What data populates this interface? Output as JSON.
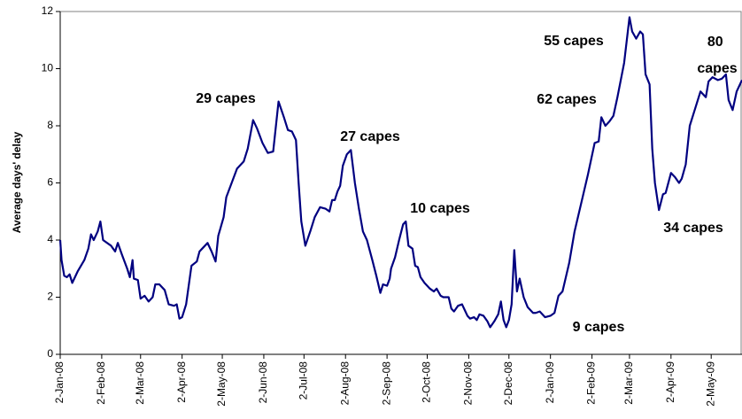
{
  "chart_data": {
    "type": "line",
    "y_label": "Average days' delay",
    "x": [
      "2008-01-02",
      "2008-01-03",
      "2008-01-05",
      "2008-01-07",
      "2008-01-09",
      "2008-01-11",
      "2008-01-15",
      "2008-01-20",
      "2008-01-23",
      "2008-01-25",
      "2008-01-27",
      "2008-01-30",
      "2008-02-01",
      "2008-02-03",
      "2008-02-09",
      "2008-02-12",
      "2008-02-14",
      "2008-02-17",
      "2008-02-21",
      "2008-02-23",
      "2008-02-25",
      "2008-02-26",
      "2008-02-29",
      "2008-03-02",
      "2008-03-05",
      "2008-03-08",
      "2008-03-11",
      "2008-03-13",
      "2008-03-16",
      "2008-03-20",
      "2008-03-23",
      "2008-03-27",
      "2008-03-29",
      "2008-03-31",
      "2008-04-02",
      "2008-04-05",
      "2008-04-09",
      "2008-04-13",
      "2008-04-15",
      "2008-04-18",
      "2008-04-21",
      "2008-04-24",
      "2008-04-27",
      "2008-04-29",
      "2008-05-03",
      "2008-05-05",
      "2008-05-09",
      "2008-05-13",
      "2008-05-18",
      "2008-05-21",
      "2008-05-25",
      "2008-05-28",
      "2008-06-01",
      "2008-06-05",
      "2008-06-09",
      "2008-06-13",
      "2008-06-17",
      "2008-06-20",
      "2008-06-23",
      "2008-06-26",
      "2008-06-28",
      "2008-06-30",
      "2008-07-03",
      "2008-07-07",
      "2008-07-10",
      "2008-07-14",
      "2008-07-18",
      "2008-07-21",
      "2008-07-23",
      "2008-07-25",
      "2008-07-27",
      "2008-07-29",
      "2008-07-31",
      "2008-08-03",
      "2008-08-06",
      "2008-08-09",
      "2008-08-12",
      "2008-08-15",
      "2008-08-18",
      "2008-08-22",
      "2008-08-25",
      "2008-08-28",
      "2008-08-30",
      "2008-09-02",
      "2008-09-04",
      "2008-09-05",
      "2008-09-08",
      "2008-09-11",
      "2008-09-14",
      "2008-09-16",
      "2008-09-18",
      "2008-09-21",
      "2008-09-23",
      "2008-09-25",
      "2008-09-27",
      "2008-09-30",
      "2008-10-04",
      "2008-10-07",
      "2008-10-09",
      "2008-10-12",
      "2008-10-14",
      "2008-10-18",
      "2008-10-20",
      "2008-10-22",
      "2008-10-25",
      "2008-10-28",
      "2008-10-30",
      "2008-11-01",
      "2008-11-03",
      "2008-11-06",
      "2008-11-08",
      "2008-11-10",
      "2008-11-13",
      "2008-11-16",
      "2008-11-18",
      "2008-11-21",
      "2008-11-24",
      "2008-11-26",
      "2008-11-28",
      "2008-11-30",
      "2008-12-02",
      "2008-12-04",
      "2008-12-06",
      "2008-12-08",
      "2008-12-10",
      "2008-12-13",
      "2008-12-16",
      "2008-12-20",
      "2008-12-22",
      "2008-12-25",
      "2008-12-29",
      "2009-01-02",
      "2009-01-05",
      "2009-01-08",
      "2009-01-11",
      "2009-01-16",
      "2009-01-20",
      "2009-01-25",
      "2009-01-30",
      "2009-02-04",
      "2009-02-07",
      "2009-02-09",
      "2009-02-12",
      "2009-02-15",
      "2009-02-18",
      "2009-02-21",
      "2009-02-26",
      "2009-02-28",
      "2009-03-02",
      "2009-03-04",
      "2009-03-07",
      "2009-03-10",
      "2009-03-12",
      "2009-03-14",
      "2009-03-17",
      "2009-03-19",
      "2009-03-21",
      "2009-03-24",
      "2009-03-27",
      "2009-03-29",
      "2009-04-02",
      "2009-04-05",
      "2009-04-08",
      "2009-04-10",
      "2009-04-13",
      "2009-04-16",
      "2009-04-20",
      "2009-04-24",
      "2009-04-28",
      "2009-04-30",
      "2009-05-03",
      "2009-05-07",
      "2009-05-10",
      "2009-05-13",
      "2009-05-15",
      "2009-05-18",
      "2009-05-21",
      "2009-05-25"
    ],
    "series": [
      {
        "color": "#000080",
        "values": [
          4.0,
          3.3,
          2.75,
          2.7,
          2.8,
          2.5,
          2.9,
          3.3,
          3.7,
          4.2,
          4.0,
          4.3,
          4.65,
          4.0,
          3.8,
          3.6,
          3.9,
          3.5,
          3.0,
          2.7,
          3.3,
          2.65,
          2.6,
          1.95,
          2.05,
          1.85,
          2.0,
          2.45,
          2.45,
          2.25,
          1.75,
          1.7,
          1.75,
          1.25,
          1.3,
          1.75,
          3.1,
          3.25,
          3.6,
          3.75,
          3.9,
          3.6,
          3.25,
          4.15,
          4.8,
          5.5,
          6.0,
          6.5,
          6.75,
          7.2,
          8.2,
          7.9,
          7.4,
          7.05,
          7.1,
          8.85,
          8.3,
          7.85,
          7.8,
          7.5,
          6.0,
          4.65,
          3.8,
          4.35,
          4.8,
          5.15,
          5.1,
          5.0,
          5.4,
          5.4,
          5.7,
          5.9,
          6.6,
          7.0,
          7.15,
          6.0,
          5.1,
          4.3,
          4.0,
          3.3,
          2.75,
          2.15,
          2.45,
          2.4,
          2.65,
          3.0,
          3.4,
          4.0,
          4.55,
          4.65,
          3.8,
          3.7,
          3.1,
          3.05,
          2.7,
          2.5,
          2.3,
          2.2,
          2.3,
          2.05,
          2.0,
          2.0,
          1.6,
          1.5,
          1.7,
          1.75,
          1.55,
          1.35,
          1.25,
          1.3,
          1.2,
          1.4,
          1.35,
          1.15,
          0.95,
          1.15,
          1.4,
          1.85,
          1.2,
          0.95,
          1.2,
          1.75,
          3.65,
          2.2,
          2.65,
          2.0,
          1.65,
          1.45,
          1.45,
          1.5,
          1.3,
          1.35,
          1.45,
          2.05,
          2.2,
          3.2,
          4.3,
          5.3,
          6.3,
          7.4,
          7.45,
          8.3,
          8.0,
          8.15,
          8.35,
          9.0,
          10.2,
          11.0,
          11.8,
          11.3,
          11.05,
          11.3,
          11.2,
          9.8,
          9.45,
          7.2,
          6.0,
          5.05,
          5.6,
          5.65,
          6.35,
          6.2,
          6.0,
          6.15,
          6.65,
          8.0,
          8.6,
          9.2,
          9.0,
          9.55,
          9.7,
          9.6,
          9.65,
          9.8,
          8.9,
          8.55,
          9.2,
          9.6
        ]
      }
    ],
    "xlim": [
      "2008-01-02",
      "2009-05-25"
    ],
    "xticks": [
      {
        "value": "2008-01-02",
        "label": "2-Jan-08"
      },
      {
        "value": "2008-02-02",
        "label": "2-Feb-08"
      },
      {
        "value": "2008-03-02",
        "label": "2-Mar-08"
      },
      {
        "value": "2008-04-02",
        "label": "2-Apr-08"
      },
      {
        "value": "2008-05-02",
        "label": "2-May-08"
      },
      {
        "value": "2008-06-02",
        "label": "2-Jun-08"
      },
      {
        "value": "2008-07-02",
        "label": "2-Jul-08"
      },
      {
        "value": "2008-08-02",
        "label": "2-Aug-08"
      },
      {
        "value": "2008-09-02",
        "label": "2-Sep-08"
      },
      {
        "value": "2008-10-02",
        "label": "2-Oct-08"
      },
      {
        "value": "2008-11-02",
        "label": "2-Nov-08"
      },
      {
        "value": "2008-12-02",
        "label": "2-Dec-08"
      },
      {
        "value": "2009-01-02",
        "label": "2-Jan-09"
      },
      {
        "value": "2009-02-02",
        "label": "2-Feb-09"
      },
      {
        "value": "2009-03-02",
        "label": "2-Mar-09"
      },
      {
        "value": "2009-04-02",
        "label": "2-Apr-09"
      },
      {
        "value": "2009-05-02",
        "label": "2-May-09"
      }
    ],
    "ylim": [
      0,
      12
    ],
    "yticks": [
      0,
      2,
      4,
      6,
      8,
      10,
      12
    ],
    "annotations": [
      "29 capes",
      "27 capes",
      "10 capes",
      "9 capes",
      "62 capes",
      "55 capes",
      "80 capes",
      "34 capes"
    ]
  }
}
